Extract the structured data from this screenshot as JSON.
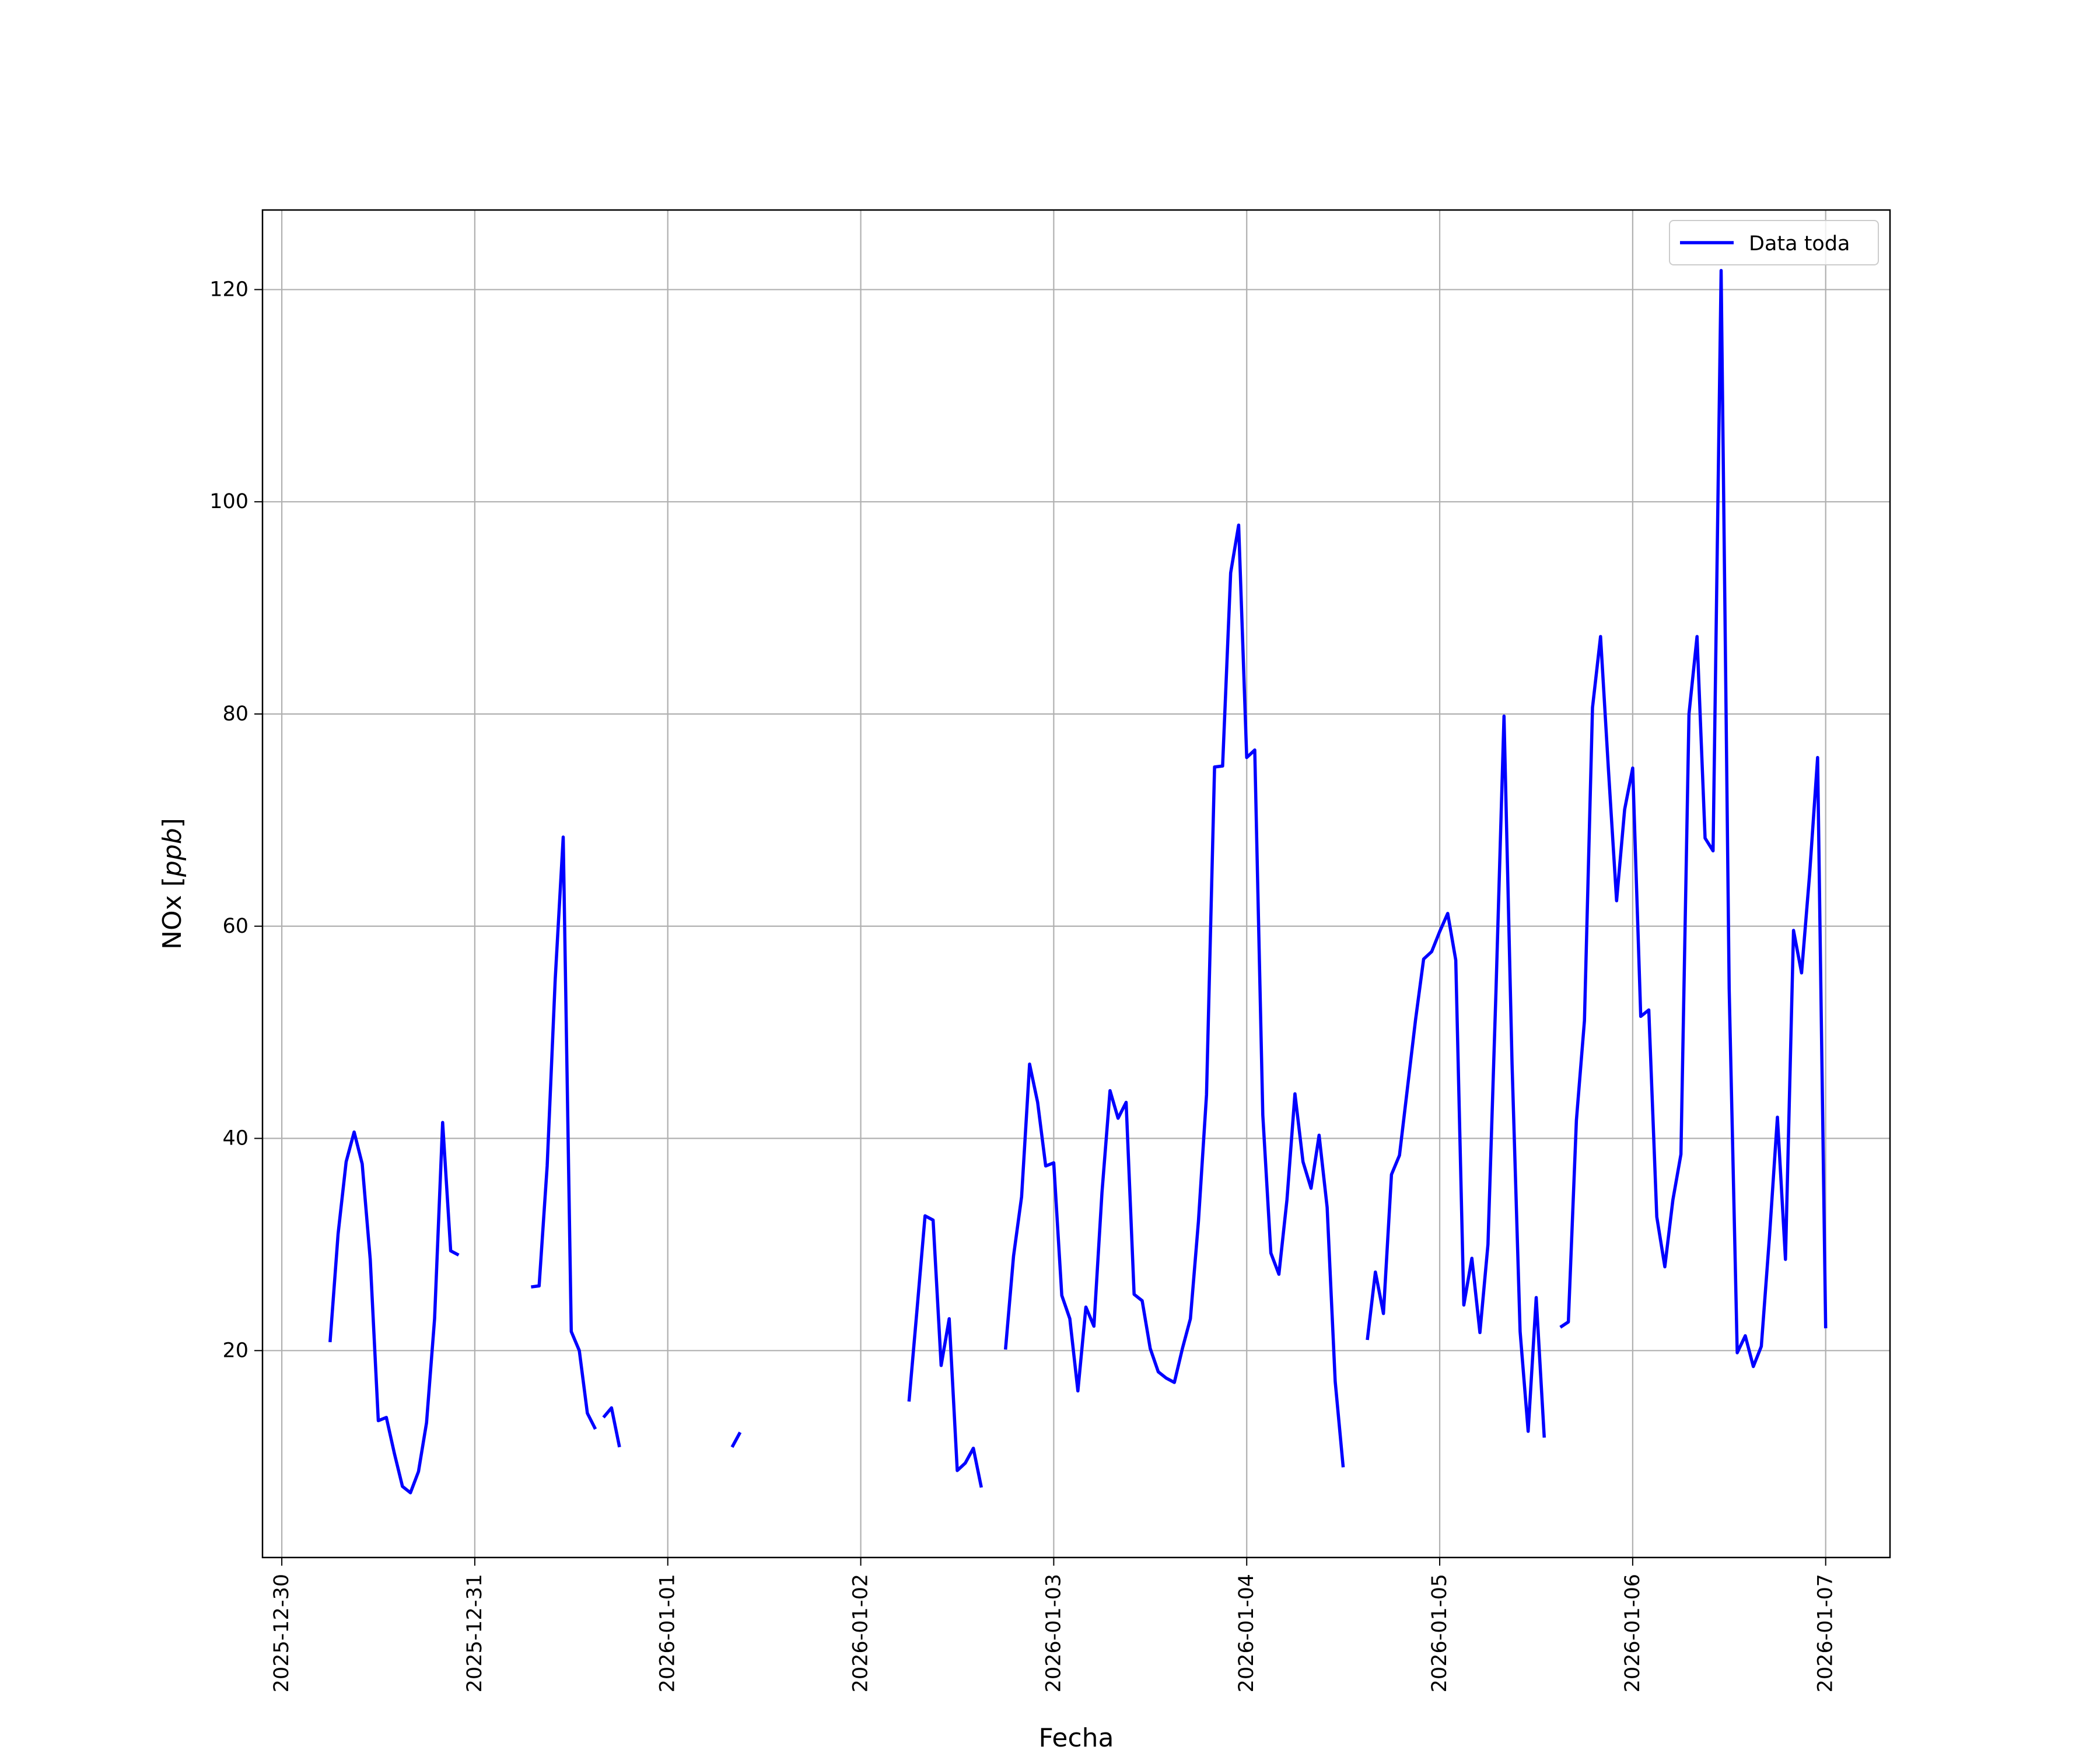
{
  "chart_data": {
    "type": "line",
    "xlabel": "Fecha",
    "ylabel": "NOx [ppb]",
    "ylabel_text": "NOx ",
    "ylabel_unit": "ppb",
    "x_axis_type": "datetime",
    "xlim": [
      "2025-12-29 21:36",
      "2026-01-07 08:00"
    ],
    "ylim": [
      0.5,
      127.5
    ],
    "x_ticks": [
      "2025-12-30",
      "2025-12-31",
      "2026-01-01",
      "2026-01-02",
      "2026-01-03",
      "2026-01-04",
      "2026-01-05",
      "2026-01-06",
      "2026-01-07"
    ],
    "y_ticks": [
      20,
      40,
      60,
      80,
      100,
      120
    ],
    "grid": true,
    "legend_position": "upper right",
    "series": [
      {
        "name": "Data toda",
        "color": "#0000ff",
        "points": [
          [
            "2025-12-30 06:00",
            20.8
          ],
          [
            "2025-12-30 07:00",
            31.0
          ],
          [
            "2025-12-30 08:00",
            37.8
          ],
          [
            "2025-12-30 09:00",
            40.6
          ],
          [
            "2025-12-30 10:00",
            37.6
          ],
          [
            "2025-12-30 11:00",
            28.6
          ],
          [
            "2025-12-30 12:00",
            13.4
          ],
          [
            "2025-12-30 13:00",
            13.7
          ],
          [
            "2025-12-30 14:00",
            10.3
          ],
          [
            "2025-12-30 15:00",
            7.2
          ],
          [
            "2025-12-30 16:00",
            6.6
          ],
          [
            "2025-12-30 17:00",
            8.6
          ],
          [
            "2025-12-30 18:00",
            13.2
          ],
          [
            "2025-12-30 19:00",
            23.0
          ],
          [
            "2025-12-30 20:00",
            41.5
          ],
          [
            "2025-12-30 21:00",
            29.4
          ],
          [
            "2025-12-30 22:00",
            29.0
          ],
          [
            "2025-12-31 05:00",
            null
          ],
          [
            "2025-12-31 07:00",
            26.0
          ],
          [
            "2025-12-31 08:00",
            26.1
          ],
          [
            "2025-12-31 09:00",
            37.4
          ],
          [
            "2025-12-31 10:00",
            55.0
          ],
          [
            "2025-12-31 11:00",
            68.4
          ],
          [
            "2025-12-31 12:00",
            21.8
          ],
          [
            "2025-12-31 13:00",
            20.0
          ],
          [
            "2025-12-31 14:00",
            14.1
          ],
          [
            "2025-12-31 15:00",
            12.6
          ],
          [
            "2025-12-31 15:30",
            null
          ],
          [
            "2025-12-31 16:00",
            13.7
          ],
          [
            "2025-12-31 17:00",
            14.6
          ],
          [
            "2025-12-31 18:00",
            10.9
          ],
          [
            "2026-01-01 01:00",
            null
          ],
          [
            "2026-01-01 08:00",
            10.9
          ],
          [
            "2026-01-01 09:00",
            12.3
          ],
          [
            "2026-01-01 18:00",
            null
          ],
          [
            "2026-01-02 06:00",
            15.2
          ],
          [
            "2026-01-02 07:00",
            23.9
          ],
          [
            "2026-01-02 08:00",
            32.7
          ],
          [
            "2026-01-02 09:00",
            32.3
          ],
          [
            "2026-01-02 10:00",
            18.6
          ],
          [
            "2026-01-02 11:00",
            23.0
          ],
          [
            "2026-01-02 12:00",
            8.7
          ],
          [
            "2026-01-02 13:00",
            9.4
          ],
          [
            "2026-01-02 14:00",
            10.8
          ],
          [
            "2026-01-02 15:00",
            7.1
          ],
          [
            "2026-01-02 16:00",
            null
          ],
          [
            "2026-01-02 18:00",
            20.1
          ],
          [
            "2026-01-02 19:00",
            28.9
          ],
          [
            "2026-01-02 20:00",
            34.5
          ],
          [
            "2026-01-02 21:00",
            47.0
          ],
          [
            "2026-01-02 22:00",
            43.4
          ],
          [
            "2026-01-02 23:00",
            37.4
          ],
          [
            "2026-01-03 00:00",
            37.7
          ],
          [
            "2026-01-03 01:00",
            25.2
          ],
          [
            "2026-01-03 02:00",
            23.0
          ],
          [
            "2026-01-03 03:00",
            16.2
          ],
          [
            "2026-01-03 04:00",
            24.1
          ],
          [
            "2026-01-03 05:00",
            22.3
          ],
          [
            "2026-01-03 06:00",
            34.9
          ],
          [
            "2026-01-03 07:00",
            44.5
          ],
          [
            "2026-01-03 08:00",
            41.9
          ],
          [
            "2026-01-03 09:00",
            43.4
          ],
          [
            "2026-01-03 10:00",
            25.3
          ],
          [
            "2026-01-03 11:00",
            24.7
          ],
          [
            "2026-01-03 12:00",
            20.2
          ],
          [
            "2026-01-03 13:00",
            18.0
          ],
          [
            "2026-01-03 14:00",
            17.4
          ],
          [
            "2026-01-03 15:00",
            17.0
          ],
          [
            "2026-01-03 16:00",
            20.2
          ],
          [
            "2026-01-03 17:00",
            23.0
          ],
          [
            "2026-01-03 18:00",
            32.2
          ],
          [
            "2026-01-03 19:00",
            44.1
          ],
          [
            "2026-01-03 20:00",
            75.0
          ],
          [
            "2026-01-03 21:00",
            75.1
          ],
          [
            "2026-01-03 22:00",
            93.3
          ],
          [
            "2026-01-03 23:00",
            97.8
          ],
          [
            "2026-01-04 00:00",
            75.9
          ],
          [
            "2026-01-04 01:00",
            76.6
          ],
          [
            "2026-01-04 02:00",
            42.2
          ],
          [
            "2026-01-04 03:00",
            29.2
          ],
          [
            "2026-01-04 04:00",
            27.2
          ],
          [
            "2026-01-04 05:00",
            34.2
          ],
          [
            "2026-01-04 06:00",
            44.2
          ],
          [
            "2026-01-04 07:00",
            37.8
          ],
          [
            "2026-01-04 08:00",
            35.3
          ],
          [
            "2026-01-04 09:00",
            40.3
          ],
          [
            "2026-01-04 10:00",
            33.5
          ],
          [
            "2026-01-04 11:00",
            17.1
          ],
          [
            "2026-01-04 12:00",
            9.0
          ],
          [
            "2026-01-04 13:00",
            null
          ],
          [
            "2026-01-04 15:00",
            21.0
          ],
          [
            "2026-01-04 16:00",
            27.4
          ],
          [
            "2026-01-04 17:00",
            23.5
          ],
          [
            "2026-01-04 18:00",
            36.6
          ],
          [
            "2026-01-04 19:00",
            38.4
          ],
          [
            "2026-01-04 20:00",
            44.8
          ],
          [
            "2026-01-04 21:00",
            51.2
          ],
          [
            "2026-01-04 22:00",
            56.9
          ],
          [
            "2026-01-04 23:00",
            57.6
          ],
          [
            "2026-01-05 00:00",
            59.5
          ],
          [
            "2026-01-05 01:00",
            61.2
          ],
          [
            "2026-01-05 02:00",
            56.8
          ],
          [
            "2026-01-05 03:00",
            24.3
          ],
          [
            "2026-01-05 04:00",
            28.7
          ],
          [
            "2026-01-05 05:00",
            21.7
          ],
          [
            "2026-01-05 06:00",
            30.0
          ],
          [
            "2026-01-05 07:00",
            54.0
          ],
          [
            "2026-01-05 08:00",
            79.8
          ],
          [
            "2026-01-05 09:00",
            47.0
          ],
          [
            "2026-01-05 10:00",
            21.8
          ],
          [
            "2026-01-05 11:00",
            12.4
          ],
          [
            "2026-01-05 12:00",
            25.0
          ],
          [
            "2026-01-05 13:00",
            11.8
          ],
          [
            "2026-01-05 14:00",
            null
          ],
          [
            "2026-01-05 15:00",
            22.2
          ],
          [
            "2026-01-05 16:00",
            22.7
          ],
          [
            "2026-01-05 17:00",
            41.7
          ],
          [
            "2026-01-05 18:00",
            51.1
          ],
          [
            "2026-01-05 19:00",
            80.6
          ],
          [
            "2026-01-05 20:00",
            87.3
          ],
          [
            "2026-01-05 21:00",
            74.6
          ],
          [
            "2026-01-05 22:00",
            62.4
          ],
          [
            "2026-01-05 23:00",
            71.0
          ],
          [
            "2026-01-06 00:00",
            74.9
          ],
          [
            "2026-01-06 01:00",
            51.5
          ],
          [
            "2026-01-06 02:00",
            52.1
          ],
          [
            "2026-01-06 03:00",
            32.6
          ],
          [
            "2026-01-06 04:00",
            27.9
          ],
          [
            "2026-01-06 05:00",
            34.2
          ],
          [
            "2026-01-06 06:00",
            38.5
          ],
          [
            "2026-01-06 07:00",
            80.0
          ],
          [
            "2026-01-06 08:00",
            87.3
          ],
          [
            "2026-01-06 09:00",
            68.3
          ],
          [
            "2026-01-06 10:00",
            67.1
          ],
          [
            "2026-01-06 11:00",
            121.8
          ],
          [
            "2026-01-06 12:00",
            54.1
          ],
          [
            "2026-01-06 13:00",
            19.8
          ],
          [
            "2026-01-06 14:00",
            21.4
          ],
          [
            "2026-01-06 15:00",
            18.5
          ],
          [
            "2026-01-06 16:00",
            20.4
          ],
          [
            "2026-01-06 17:00",
            30.6
          ],
          [
            "2026-01-06 18:00",
            42.0
          ],
          [
            "2026-01-06 19:00",
            28.6
          ],
          [
            "2026-01-06 20:00",
            59.6
          ],
          [
            "2026-01-06 21:00",
            55.6
          ],
          [
            "2026-01-06 22:00",
            64.9
          ],
          [
            "2026-01-06 23:00",
            75.9
          ],
          [
            "2026-01-07 00:00",
            22.1
          ]
        ]
      }
    ]
  }
}
